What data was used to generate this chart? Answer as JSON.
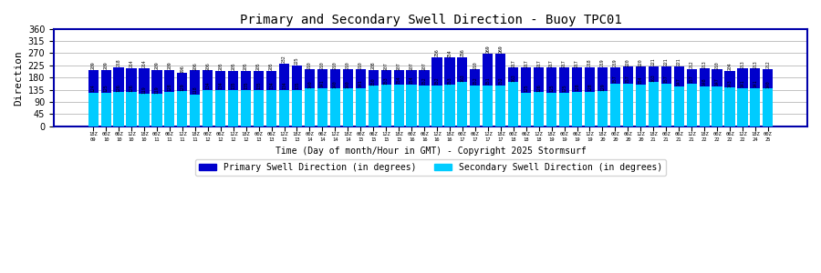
{
  "title": "Primary and Secondary Swell Direction - Buoy TPC01",
  "xlabel": "Time (Day of month/Hour in GMT) - Copyright 2025 Stormsurf",
  "ylabel": "Direction",
  "ylim": [
    0,
    360
  ],
  "yticks": [
    0,
    45,
    90,
    135,
    180,
    225,
    270,
    315,
    360
  ],
  "primary_color": "#0000CC",
  "secondary_color": "#00CCFF",
  "background_color": "#FFFFFF",
  "plot_bg_color": "#FFFFFF",
  "border_color": "#0000AA",
  "primary_label": "Primary Swell Direction (in degrees)",
  "secondary_label": "Secondary Swell Direction (in degrees)",
  "primary_values": [
    209,
    209,
    218,
    214,
    214,
    209,
    209,
    196,
    206,
    206,
    205,
    205,
    205,
    205,
    205,
    232,
    225,
    210,
    210,
    210,
    210,
    210,
    208,
    207,
    207,
    207,
    207,
    256,
    254,
    256,
    210,
    269,
    269,
    217,
    217,
    217,
    217,
    217,
    217,
    218,
    219,
    219,
    220,
    220,
    221,
    221,
    221,
    212,
    213,
    210,
    204,
    213,
    213,
    212
  ],
  "secondary_values": [
    124,
    125,
    126,
    126,
    119,
    119,
    128,
    129,
    118,
    134,
    134,
    135,
    135,
    135,
    134,
    134,
    135,
    140,
    141,
    140,
    140,
    141,
    150,
    153,
    154,
    154,
    152,
    152,
    153,
    163,
    152,
    151,
    152,
    163,
    125,
    126,
    125,
    125,
    128,
    128,
    129,
    157,
    157,
    154,
    163,
    157,
    147,
    157,
    148,
    147,
    143,
    141,
    141,
    140
  ],
  "x_labels_row1": [
    "18Z",
    "00Z",
    "06Z",
    "12Z",
    "18Z",
    "00Z",
    "06Z",
    "12Z",
    "18Z",
    "00Z",
    "06Z",
    "12Z",
    "18Z",
    "00Z",
    "06Z",
    "12Z",
    "18Z",
    "00Z",
    "06Z",
    "12Z",
    "18Z",
    "00Z",
    "06Z",
    "12Z",
    "18Z",
    "00Z",
    "06Z",
    "12Z",
    "18Z",
    "00Z",
    "06Z",
    "12Z",
    "18Z",
    "00Z",
    "06Z",
    "12Z",
    "18Z",
    "00Z",
    "06Z",
    "12Z",
    "18Z",
    "00Z",
    "06Z",
    "12Z",
    "18Z",
    "00Z",
    "06Z",
    "12Z",
    "18Z",
    "00Z",
    "06Z",
    "12Z",
    "18Z",
    "00Z"
  ],
  "x_labels_row2": [
    "09",
    "10",
    "10",
    "10",
    "10",
    "11",
    "11",
    "11",
    "11",
    "12",
    "12",
    "12",
    "12",
    "13",
    "13",
    "13",
    "13",
    "14",
    "14",
    "14",
    "14",
    "15",
    "15",
    "15",
    "15",
    "16",
    "16",
    "16",
    "16",
    "17",
    "17",
    "17",
    "17",
    "18",
    "18",
    "18",
    "19",
    "19",
    "19",
    "19",
    "20",
    "20",
    "20",
    "20",
    "21",
    "21",
    "21",
    "21",
    "22",
    "22",
    "22",
    "22",
    "24",
    "25"
  ],
  "font_family": "monospace"
}
